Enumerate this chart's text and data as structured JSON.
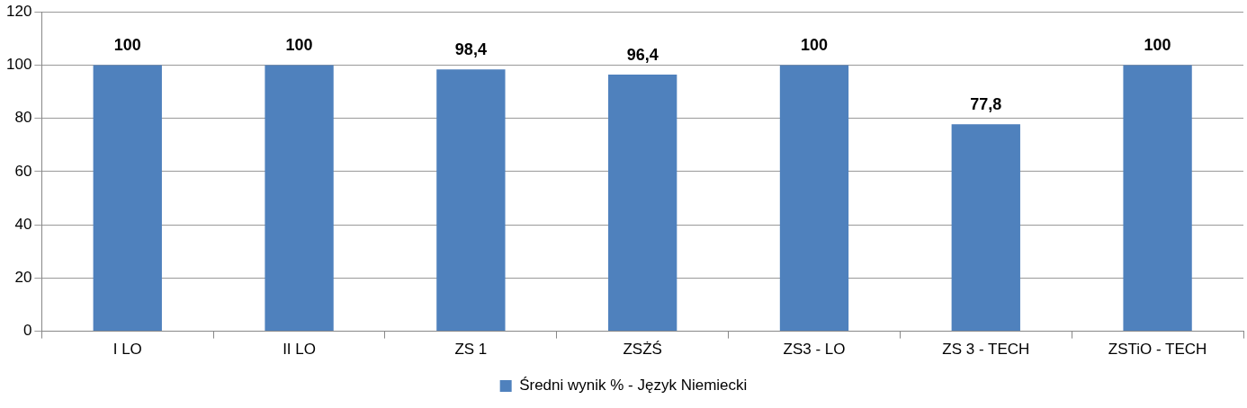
{
  "chart_data": {
    "type": "bar",
    "categories": [
      "I LO",
      "II LO",
      "ZS 1",
      "ZSŻŚ",
      "ZS3 - LO",
      "ZS 3 - TECH",
      "ZSTiO - TECH"
    ],
    "series": [
      {
        "name": "Średni wynik % - Język Niemiecki",
        "color": "#4f81bd",
        "values": [
          100,
          100,
          98.4,
          96.4,
          100,
          77.8,
          100
        ],
        "value_labels": [
          "100",
          "100",
          "98,4",
          "96,4",
          "100",
          "77,8",
          "100"
        ]
      }
    ],
    "ylim": [
      0,
      120
    ],
    "yticks": [
      0,
      20,
      40,
      60,
      80,
      100,
      120
    ],
    "grid": "y",
    "legend": "bottom"
  }
}
